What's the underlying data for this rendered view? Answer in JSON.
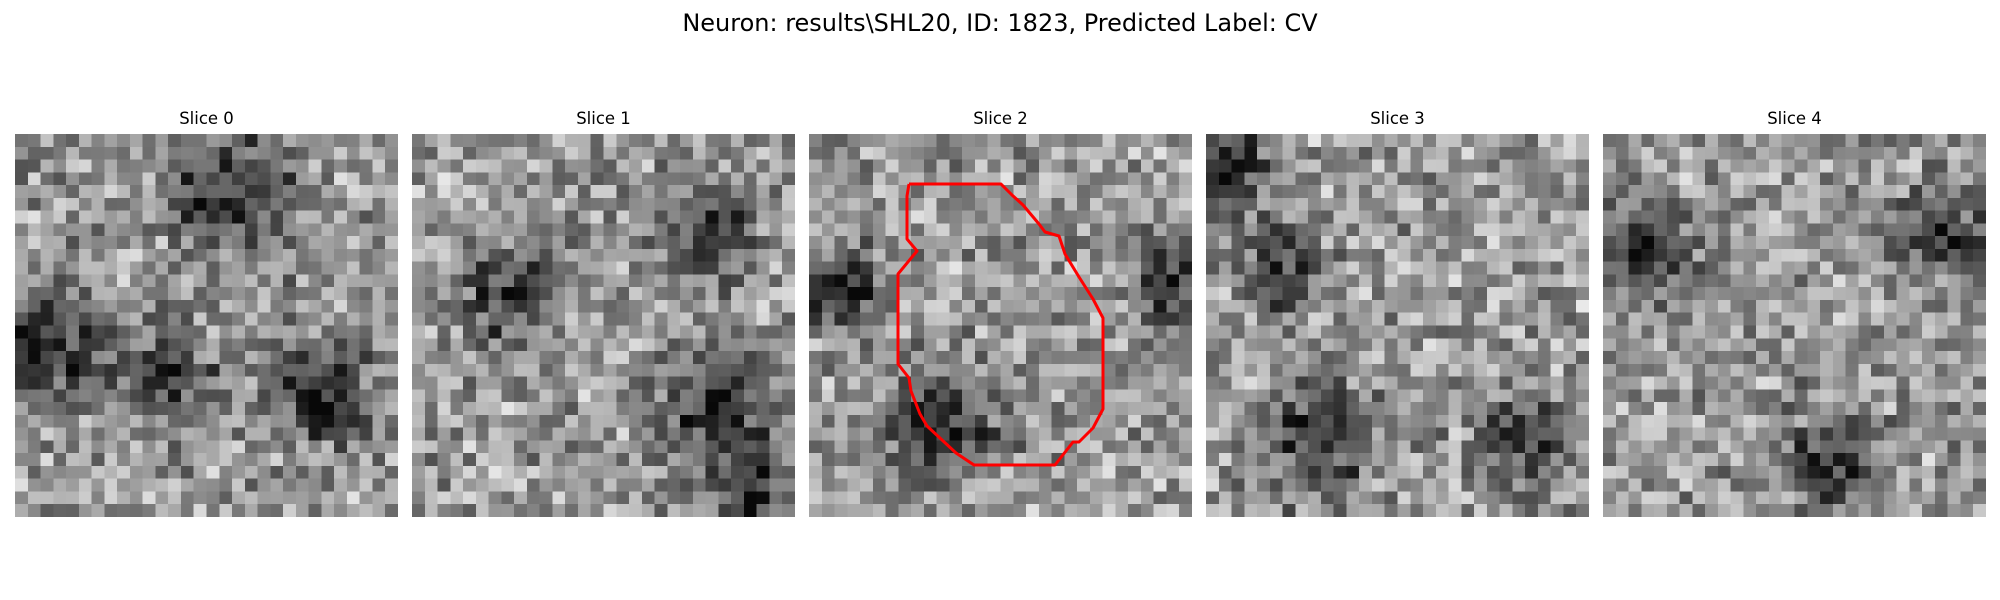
{
  "figure": {
    "title": "Neuron: results\\SHL20, ID: 1823, Predicted Label: CV"
  },
  "panels": [
    {
      "title": "Slice 0",
      "seed": 11,
      "dark_spots": [
        [
          0.58,
          0.16,
          0.12
        ],
        [
          0.1,
          0.55,
          0.1
        ],
        [
          0.8,
          0.68,
          0.1
        ],
        [
          0.4,
          0.62,
          0.08
        ]
      ],
      "contour": false
    },
    {
      "title": "Slice 1",
      "seed": 23,
      "dark_spots": [
        [
          0.25,
          0.42,
          0.09
        ],
        [
          0.78,
          0.28,
          0.08
        ],
        [
          0.8,
          0.72,
          0.1
        ],
        [
          0.9,
          0.95,
          0.08
        ]
      ],
      "contour": false
    },
    {
      "title": "Slice 2",
      "seed": 37,
      "dark_spots": [
        [
          0.35,
          0.76,
          0.1
        ],
        [
          0.08,
          0.4,
          0.08
        ],
        [
          0.95,
          0.4,
          0.08
        ]
      ],
      "contour": true
    },
    {
      "title": "Slice 3",
      "seed": 41,
      "dark_spots": [
        [
          0.3,
          0.8,
          0.1
        ],
        [
          0.05,
          0.08,
          0.08
        ],
        [
          0.82,
          0.8,
          0.08
        ],
        [
          0.2,
          0.35,
          0.08
        ]
      ],
      "contour": false
    },
    {
      "title": "Slice 4",
      "seed": 53,
      "dark_spots": [
        [
          0.6,
          0.85,
          0.09
        ],
        [
          0.88,
          0.25,
          0.08
        ],
        [
          0.1,
          0.3,
          0.09
        ]
      ],
      "contour": false
    }
  ],
  "contour_color": "#ff0000"
}
